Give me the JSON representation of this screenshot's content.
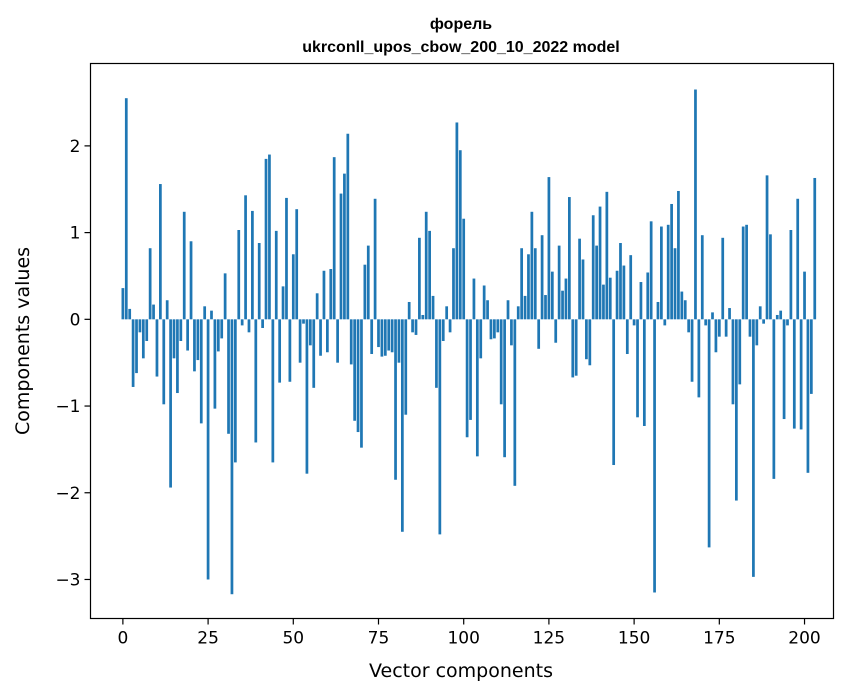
{
  "chart_data": {
    "type": "bar",
    "title": "форель",
    "subtitle": "ukrconll_upos_cbow_200_10_2022 model",
    "xlabel": "Vector components",
    "ylabel": "Components values",
    "xlim": [
      -9.5,
      208.5
    ],
    "ylim": [
      -3.45,
      2.95
    ],
    "xticks": [
      0,
      25,
      50,
      75,
      100,
      125,
      150,
      175,
      200
    ],
    "xtick_labels": [
      "0",
      "25",
      "50",
      "75",
      "100",
      "125",
      "150",
      "175",
      "200"
    ],
    "yticks": [
      -3,
      -2,
      -1,
      0,
      1,
      2
    ],
    "ytick_labels": [
      "−3",
      "−2",
      "−1",
      "0",
      "1",
      "2"
    ],
    "grid": false,
    "legend": "none",
    "bar_color": "#1f77b4",
    "values": [
      0.36,
      2.55,
      0.12,
      -0.78,
      -0.62,
      -0.15,
      -0.45,
      -0.25,
      0.82,
      0.17,
      -0.66,
      1.56,
      -0.98,
      0.22,
      -1.94,
      -0.45,
      -0.85,
      -0.25,
      1.24,
      -0.36,
      0.9,
      -0.6,
      -0.47,
      -1.2,
      0.15,
      -3.0,
      0.1,
      -1.03,
      -0.37,
      -0.22,
      0.53,
      -1.32,
      -3.17,
      -1.65,
      1.03,
      -0.07,
      1.43,
      -0.15,
      1.25,
      -1.42,
      0.88,
      -0.1,
      1.85,
      1.9,
      -1.65,
      1.02,
      -0.73,
      0.38,
      1.4,
      -0.72,
      0.75,
      1.27,
      -0.5,
      -0.05,
      -1.78,
      -0.3,
      -0.79,
      0.3,
      -0.42,
      0.56,
      -0.38,
      0.58,
      1.87,
      -0.5,
      1.45,
      1.68,
      2.14,
      -0.52,
      -1.17,
      -1.3,
      -1.48,
      0.63,
      0.85,
      -0.4,
      1.39,
      -0.32,
      -0.43,
      -0.42,
      -0.36,
      -0.38,
      -1.85,
      -0.5,
      -2.45,
      -1.1,
      0.2,
      -0.15,
      -0.18,
      0.94,
      0.05,
      1.24,
      1.02,
      0.27,
      -0.79,
      -2.48,
      -0.25,
      0.15,
      -0.15,
      0.82,
      2.27,
      1.95,
      1.16,
      -1.36,
      -1.16,
      0.47,
      -1.58,
      -0.45,
      0.39,
      0.22,
      -0.23,
      -0.22,
      -0.15,
      -0.98,
      -1.59,
      0.22,
      -0.3,
      -1.92,
      0.15,
      0.82,
      0.27,
      0.75,
      1.24,
      0.82,
      -0.34,
      0.97,
      0.28,
      1.64,
      0.55,
      -0.27,
      0.85,
      0.33,
      0.47,
      1.41,
      -0.67,
      -0.65,
      0.93,
      0.69,
      -0.46,
      -0.53,
      1.2,
      0.85,
      1.3,
      0.4,
      1.47,
      0.48,
      -1.68,
      0.56,
      0.88,
      0.62,
      -0.4,
      0.74,
      -0.07,
      -1.13,
      0.43,
      -1.23,
      0.54,
      1.13,
      -3.15,
      0.2,
      1.07,
      -0.07,
      1.09,
      1.33,
      0.82,
      1.48,
      0.32,
      0.22,
      -0.15,
      -0.72,
      2.65,
      -0.9,
      0.97,
      -0.07,
      -2.63,
      0.08,
      -0.38,
      -0.2,
      0.94,
      -0.2,
      0.13,
      -0.98,
      -2.09,
      -0.75,
      1.07,
      1.09,
      -0.2,
      -2.97,
      -0.3,
      0.15,
      -0.05,
      1.66,
      0.98,
      -1.84,
      0.05,
      0.1,
      -1.15,
      -0.07,
      1.03,
      -1.26,
      1.39,
      -1.27,
      0.55,
      -1.77,
      -0.86,
      1.63
    ]
  }
}
